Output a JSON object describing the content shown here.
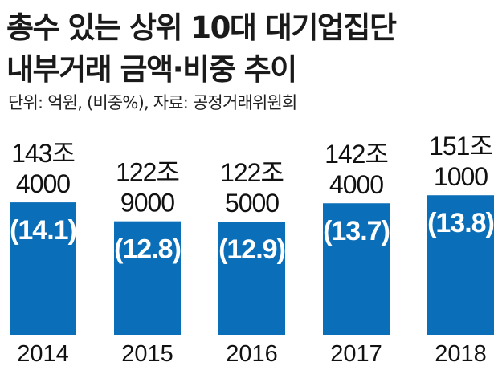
{
  "header": {
    "title_line1": "총수 있는 상위 10대 대기업집단",
    "title_line2": "내부거래 금액·비중 추이",
    "subtitle": "단위: 억원, (비중%), 자료: 공정거래위원회"
  },
  "colors": {
    "bar": "#0a6fb8"
  },
  "chart_data": {
    "type": "bar",
    "title": "총수 있는 상위 10대 대기업집단 내부거래 금액·비중 추이",
    "categories": [
      "2014",
      "2015",
      "2016",
      "2017",
      "2018"
    ],
    "series": [
      {
        "name": "",
        "values": [
          1434000,
          1229000,
          1225000,
          1424000,
          1511000
        ]
      },
      {
        "name": "",
        "values": [
          14.1,
          12.8,
          12.9,
          13.7,
          13.8
        ]
      }
    ],
    "value_labels": [
      [
        "143조",
        "4000"
      ],
      [
        "122조",
        "9000"
      ],
      [
        "122조",
        "5000"
      ],
      [
        "142조",
        "4000"
      ],
      [
        "151조",
        "1000"
      ]
    ],
    "pct_labels": [
      "(14.1)",
      "(12.8)",
      "(12.9)",
      "(13.7)",
      "(13.8)"
    ],
    "units": "억원, (비중%)",
    "source": "공정거래위원회",
    "ylim": [
      0,
      2200000
    ],
    "grid": false,
    "legend": "none"
  }
}
